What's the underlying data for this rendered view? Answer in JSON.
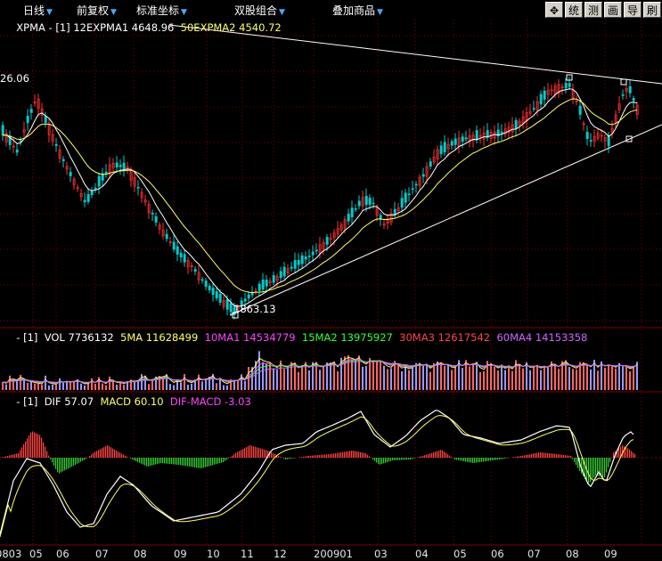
{
  "toolbar": {
    "menus": [
      {
        "label": "日线"
      },
      {
        "label": "前复权"
      },
      {
        "label": "标准坐标"
      },
      {
        "label": "双股组合"
      },
      {
        "label": "叠加商品"
      }
    ],
    "buttons": [
      {
        "label": "✥",
        "icon": "move-cross-icon"
      },
      {
        "label": "统"
      },
      {
        "label": "测"
      },
      {
        "label": "画"
      },
      {
        "label": "导"
      },
      {
        "label": "刷"
      }
    ]
  },
  "main_panel": {
    "indicator": "XPMA",
    "param": "[1]",
    "ma1_label": "12EXPMA1",
    "ma1_value": "4648.96",
    "ma2_label": "50EXPMA2",
    "ma2_value": "4540.72",
    "high_marker": "26.06",
    "low_marker": "1863.13"
  },
  "volume_panel": {
    "param": "[1]",
    "items": [
      {
        "label": "VOL",
        "value": "7736132",
        "color": "#ffffff"
      },
      {
        "label": "5MA",
        "value": "11628499",
        "color": "#ffff66"
      },
      {
        "label": "10MA1",
        "value": "14534779",
        "color": "#ff44ff"
      },
      {
        "label": "15MA2",
        "value": "13975927",
        "color": "#33ff33"
      },
      {
        "label": "30MA3",
        "value": "12617542",
        "color": "#ff4444"
      },
      {
        "label": "60MA4",
        "value": "14153358",
        "color": "#cc66ff"
      }
    ]
  },
  "macd_panel": {
    "param": "[1]",
    "dif_label": "DIF",
    "dif_value": "57.07",
    "macd_label": "MACD",
    "macd_value": "60.10",
    "diff_label": "DIF-MACD",
    "diff_value": "-3.03"
  },
  "x_axis": {
    "labels": [
      "0803",
      "05",
      "06",
      "07",
      "08",
      "09",
      "10",
      "11",
      "12",
      "200901",
      "03",
      "04",
      "05",
      "06",
      "07",
      "08",
      "09"
    ]
  },
  "colors": {
    "up": "#ff3232",
    "down": "#00cccc",
    "grid": "#800000",
    "macd_pos": "#ff4444",
    "macd_neg": "#33cc33"
  }
}
